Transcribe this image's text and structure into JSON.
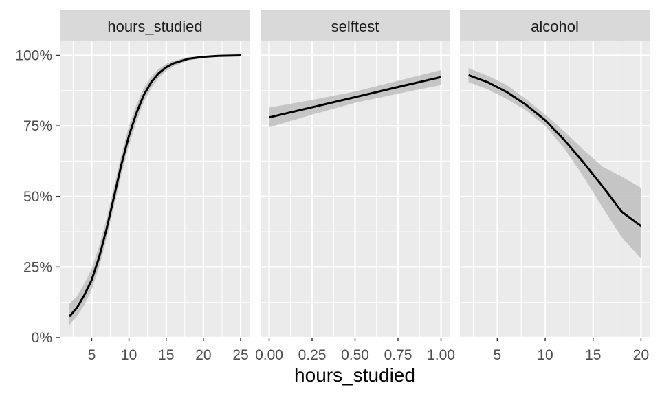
{
  "chart_data": {
    "type": "line",
    "xlabel": "hours_studied",
    "ylabel": "",
    "y_ticks": [
      {
        "value": 0,
        "label": "0%"
      },
      {
        "value": 0.25,
        "label": "25%"
      },
      {
        "value": 0.5,
        "label": "50%"
      },
      {
        "value": 0.75,
        "label": "75%"
      },
      {
        "value": 1.0,
        "label": "100%"
      }
    ],
    "ylim": [
      0,
      1.05
    ],
    "grid": true,
    "panels": [
      {
        "strip": "hours_studied",
        "xlim": [
          0.8,
          26.2
        ],
        "x_ticks": [
          {
            "value": 5,
            "label": "5"
          },
          {
            "value": 10,
            "label": "10"
          },
          {
            "value": 15,
            "label": "15"
          },
          {
            "value": 20,
            "label": "20"
          },
          {
            "value": 25,
            "label": "25"
          }
        ],
        "x_minor": [
          2.5,
          7.5,
          12.5,
          17.5,
          22.5
        ],
        "points": [
          {
            "x": 2,
            "y": 0.075,
            "lo": 0.045,
            "hi": 0.12
          },
          {
            "x": 3,
            "y": 0.105,
            "lo": 0.075,
            "hi": 0.145
          },
          {
            "x": 4,
            "y": 0.15,
            "lo": 0.115,
            "hi": 0.19
          },
          {
            "x": 5,
            "y": 0.205,
            "lo": 0.17,
            "hi": 0.245
          },
          {
            "x": 6,
            "y": 0.285,
            "lo": 0.25,
            "hi": 0.325
          },
          {
            "x": 7,
            "y": 0.385,
            "lo": 0.35,
            "hi": 0.42
          },
          {
            "x": 8,
            "y": 0.5,
            "lo": 0.465,
            "hi": 0.535
          },
          {
            "x": 9,
            "y": 0.615,
            "lo": 0.58,
            "hi": 0.65
          },
          {
            "x": 10,
            "y": 0.715,
            "lo": 0.68,
            "hi": 0.75
          },
          {
            "x": 11,
            "y": 0.795,
            "lo": 0.765,
            "hi": 0.825
          },
          {
            "x": 12,
            "y": 0.86,
            "lo": 0.835,
            "hi": 0.885
          },
          {
            "x": 13,
            "y": 0.905,
            "lo": 0.885,
            "hi": 0.925
          },
          {
            "x": 14,
            "y": 0.937,
            "lo": 0.92,
            "hi": 0.952
          },
          {
            "x": 15,
            "y": 0.958,
            "lo": 0.945,
            "hi": 0.97
          },
          {
            "x": 16,
            "y": 0.972,
            "lo": 0.962,
            "hi": 0.981
          },
          {
            "x": 18,
            "y": 0.988,
            "lo": 0.982,
            "hi": 0.993
          },
          {
            "x": 20,
            "y": 0.995,
            "lo": 0.991,
            "hi": 0.998
          },
          {
            "x": 22,
            "y": 0.998,
            "lo": 0.996,
            "hi": 0.999
          },
          {
            "x": 25,
            "y": 1.0,
            "lo": 0.999,
            "hi": 1.0
          }
        ]
      },
      {
        "strip": "selftest",
        "xlim": [
          -0.05,
          1.05
        ],
        "x_ticks": [
          {
            "value": 0,
            "label": "0.00"
          },
          {
            "value": 0.25,
            "label": "0.25"
          },
          {
            "value": 0.5,
            "label": "0.50"
          },
          {
            "value": 0.75,
            "label": "0.75"
          },
          {
            "value": 1.0,
            "label": "1.00"
          }
        ],
        "x_minor": [
          0.125,
          0.375,
          0.625,
          0.875
        ],
        "points": [
          {
            "x": 0,
            "y": 0.78,
            "lo": 0.745,
            "hi": 0.815
          },
          {
            "x": 0.25,
            "y": 0.816,
            "lo": 0.79,
            "hi": 0.842
          },
          {
            "x": 0.5,
            "y": 0.852,
            "lo": 0.832,
            "hi": 0.872
          },
          {
            "x": 0.75,
            "y": 0.888,
            "lo": 0.864,
            "hi": 0.91
          },
          {
            "x": 1.0,
            "y": 0.923,
            "lo": 0.895,
            "hi": 0.948
          }
        ]
      },
      {
        "strip": "alcohol",
        "xlim": [
          1.1,
          20.9
        ],
        "x_ticks": [
          {
            "value": 5,
            "label": "5"
          },
          {
            "value": 10,
            "label": "10"
          },
          {
            "value": 15,
            "label": "15"
          },
          {
            "value": 20,
            "label": "20"
          }
        ],
        "x_minor": [
          2.5,
          7.5,
          12.5,
          17.5
        ],
        "points": [
          {
            "x": 2,
            "y": 0.93,
            "lo": 0.905,
            "hi": 0.955
          },
          {
            "x": 4,
            "y": 0.905,
            "lo": 0.88,
            "hi": 0.928
          },
          {
            "x": 6,
            "y": 0.87,
            "lo": 0.845,
            "hi": 0.895
          },
          {
            "x": 8,
            "y": 0.825,
            "lo": 0.805,
            "hi": 0.845
          },
          {
            "x": 10,
            "y": 0.77,
            "lo": 0.75,
            "hi": 0.79
          },
          {
            "x": 12,
            "y": 0.7,
            "lo": 0.67,
            "hi": 0.73
          },
          {
            "x": 14,
            "y": 0.62,
            "lo": 0.57,
            "hi": 0.665
          },
          {
            "x": 16,
            "y": 0.535,
            "lo": 0.46,
            "hi": 0.605
          },
          {
            "x": 18,
            "y": 0.445,
            "lo": 0.355,
            "hi": 0.57
          },
          {
            "x": 20,
            "y": 0.395,
            "lo": 0.28,
            "hi": 0.53
          }
        ]
      }
    ]
  },
  "colors": {
    "panel_bg": "#ebebeb",
    "strip_bg": "#d9d9d9",
    "grid": "#ffffff",
    "ribbon": "#bebebe",
    "line": "#000000"
  }
}
